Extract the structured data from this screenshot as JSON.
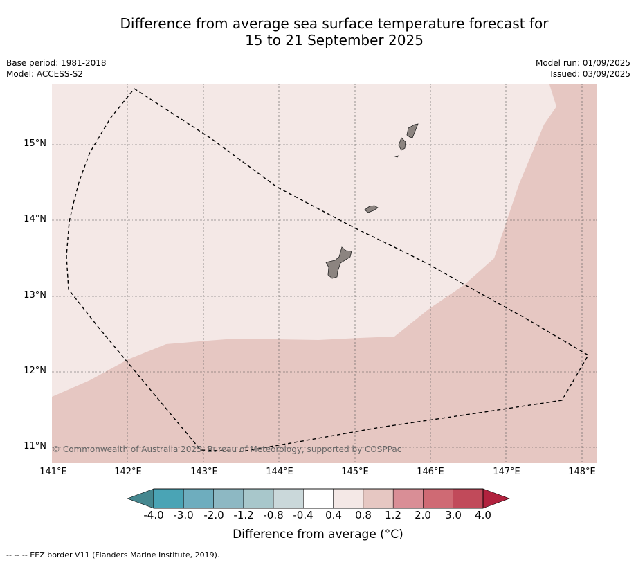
{
  "title": {
    "line1": "Difference from average sea surface temperature forecast for",
    "line2": "15 to 21 September 2025"
  },
  "info_left": {
    "base_period": "Base period: 1981-2018",
    "model": "Model: ACCESS-S2"
  },
  "info_right": {
    "model_run": "Model run: 01/09/2025",
    "issued": "Issued: 03/09/2025"
  },
  "map": {
    "longitude_labels": [
      "141°E",
      "142°E",
      "143°E",
      "144°E",
      "145°E",
      "146°E",
      "147°E",
      "148°E"
    ],
    "latitude_labels": [
      "15°N",
      "14°N",
      "13°N",
      "12°N",
      "11°N"
    ],
    "extent": {
      "lon": [
        141,
        148.2
      ],
      "lat": [
        10.8,
        15.8
      ]
    },
    "anomaly_colors": {
      "band_0_4_to_0_8": "#f4e8e6",
      "band_0_8_to_1_2": "#e6c7c2"
    },
    "land_color": "#8c8480",
    "copyright": "© Commonwealth of Australia 2025, Bureau of Meteorology, supported by COSPPac"
  },
  "colorbar": {
    "ticks": [
      "-4.0",
      "-3.0",
      "-2.0",
      "-1.2",
      "-0.8",
      "-0.4",
      "0.4",
      "0.8",
      "1.2",
      "2.0",
      "3.0",
      "4.0"
    ],
    "colors": [
      "#4aa4b5",
      "#6eadbe",
      "#8db8c3",
      "#a8c7cb",
      "#cad8da",
      "#ffffff",
      "#f4e8e6",
      "#e6c7c2",
      "#d98e96",
      "#cf6a74",
      "#c14a5a"
    ],
    "under_color": "#45878f",
    "over_color": "#b1223e",
    "label": "Difference from average (°C)"
  },
  "footer": {
    "eez_legend": "--  --  -- EEZ border V11 (Flanders Marine Institute, 2019)."
  }
}
